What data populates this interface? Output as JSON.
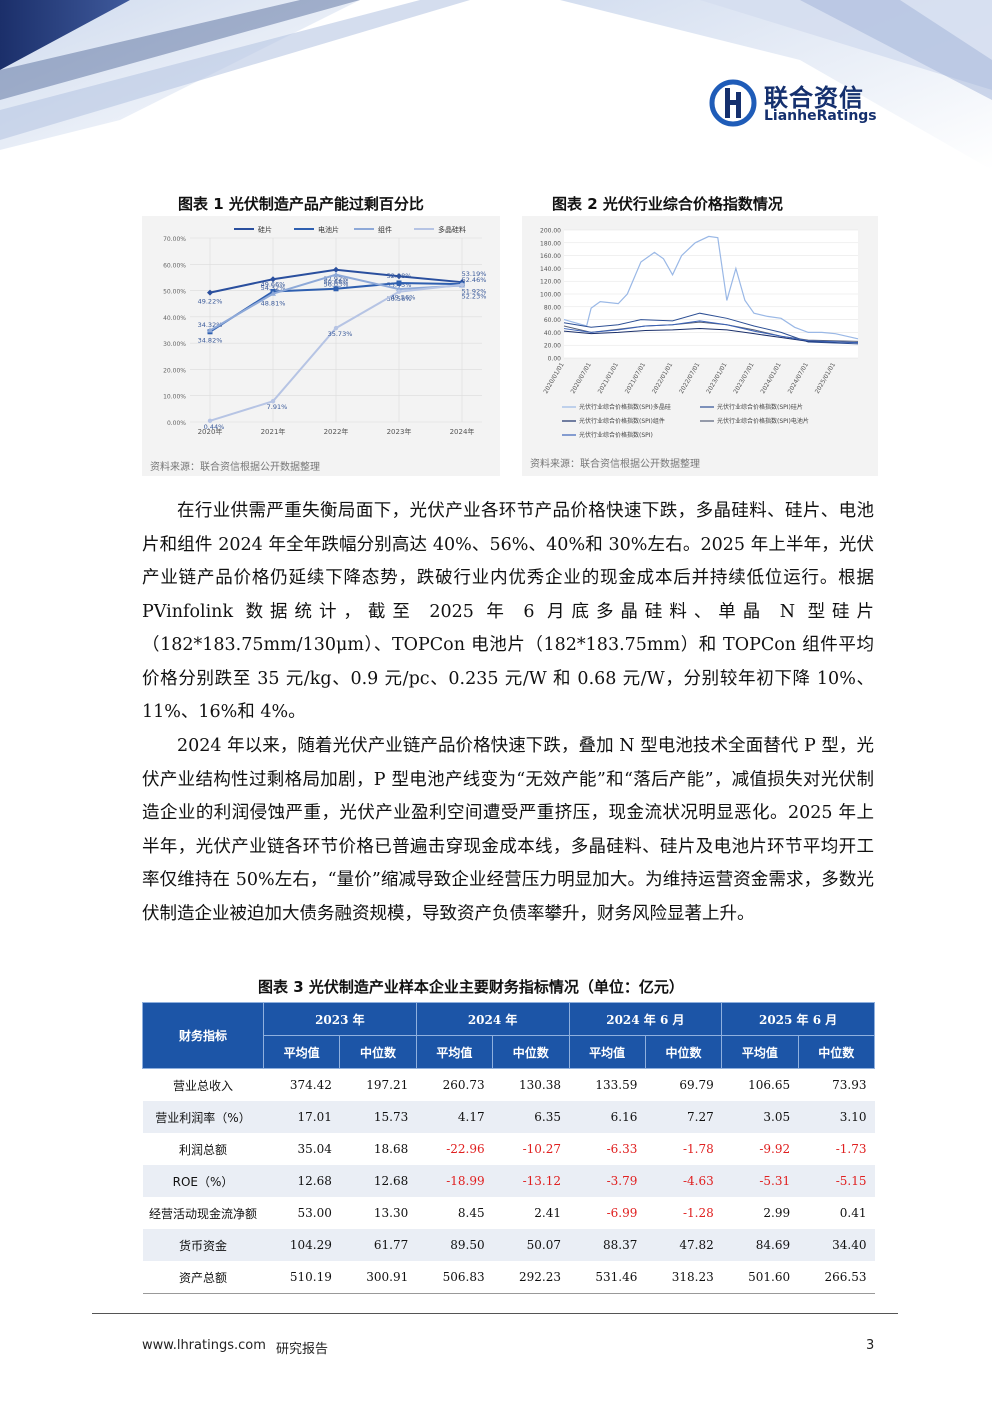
{
  "header": {
    "logo_cn": "联合资信",
    "logo_en": "LianheRatings"
  },
  "figure1": {
    "caption": "图表 1 光伏制造产品产能过剩百分比",
    "source": "资料来源：联合资信根据公开数据整理",
    "chart_data": {
      "type": "line",
      "categories": [
        "2020年",
        "2021年",
        "2022年",
        "2023年",
        "2024年"
      ],
      "ylim": [
        0,
        70
      ],
      "yticks": [
        "0.00%",
        "10.00%",
        "20.00%",
        "30.00%",
        "40.00%",
        "50.00%",
        "60.00%",
        "70.00%"
      ],
      "legend": [
        "硅片",
        "电池片",
        "组件",
        "多晶硅料"
      ],
      "series": [
        {
          "name": "硅片",
          "values": [
            49.22,
            54.32,
            57.92,
            55.45,
            53.19
          ],
          "labels": [
            "49.22%",
            "54.32%",
            "57.92%",
            "55.45%",
            "53.19%"
          ]
        },
        {
          "name": "电池片",
          "values": [
            34.32,
            49.66,
            50.68,
            52.88,
            52.46
          ],
          "labels": [
            "34.32%",
            "49.66%",
            "50.68%",
            "52.88%",
            "52.46%"
          ]
        },
        {
          "name": "组件",
          "values": [
            34.82,
            48.81,
            56.03,
            50.56,
            51.92
          ],
          "labels": [
            "34.82%",
            "48.81%",
            "56.03%",
            "50.56%",
            "51.92%"
          ]
        },
        {
          "name": "多晶硅料",
          "values": [
            0.44,
            7.91,
            35.73,
            49.56,
            52.23
          ],
          "labels": [
            "0.44%",
            "7.91%",
            "35.73%",
            "49.56%",
            "52.23%"
          ]
        }
      ]
    }
  },
  "figure2": {
    "caption": "图表 2 光伏行业综合价格指数情况",
    "source": "资料来源：联合资信根据公开数据整理",
    "chart_data": {
      "type": "line",
      "ylim": [
        0,
        200
      ],
      "yticks": [
        "0.00",
        "20.00",
        "40.00",
        "60.00",
        "80.00",
        "100.00",
        "120.00",
        "140.00",
        "160.00",
        "180.00",
        "200.00"
      ],
      "xticks": [
        "2020/01/01",
        "2020/07/01",
        "2021/01/01",
        "2021/07/01",
        "2022/01/01",
        "2022/07/01",
        "2023/01/01",
        "2023/07/01",
        "2024/01/01",
        "2024/07/01",
        "2025/01/01"
      ],
      "legend": [
        "光伏行业综合价格指数(SPI)多晶硅",
        "光伏行业综合价格指数(SPI)硅片",
        "光伏行业综合价格指数(SPI)组件",
        "光伏行业综合价格指数(SPI)电池片",
        "光伏行业综合价格指数(SPI)"
      ],
      "series": [
        {
          "name": "光伏行业综合价格指数(SPI)多晶硅",
          "x": [
            "2020/01",
            "2020/06",
            "2020/07",
            "2020/09",
            "2021/01",
            "2021/03",
            "2021/06",
            "2021/09",
            "2021/11",
            "2022/01",
            "2022/03",
            "2022/06",
            "2022/09",
            "2022/11",
            "2023/01",
            "2023/03",
            "2023/05",
            "2023/07",
            "2023/10",
            "2024/01",
            "2024/04",
            "2024/07",
            "2024/10",
            "2025/01",
            "2025/06"
          ],
          "values": [
            60,
            50,
            78,
            88,
            85,
            100,
            150,
            165,
            155,
            130,
            160,
            180,
            190,
            188,
            90,
            140,
            90,
            70,
            65,
            62,
            48,
            40,
            40,
            38,
            30
          ]
        },
        {
          "name": "光伏行业综合价格指数(SPI)硅片",
          "x": [
            "2020/01",
            "2020/07",
            "2021/01",
            "2021/06",
            "2022/01",
            "2022/07",
            "2023/01",
            "2023/07",
            "2024/01",
            "2024/07",
            "2025/06"
          ],
          "values": [
            55,
            48,
            52,
            60,
            58,
            70,
            62,
            50,
            40,
            25,
            22
          ]
        },
        {
          "name": "光伏行业综合价格指数(SPI)组件",
          "x": [
            "2020/01",
            "2020/07",
            "2021/01",
            "2021/07",
            "2022/01",
            "2022/07",
            "2023/01",
            "2023/07",
            "2024/01",
            "2024/07",
            "2025/06"
          ],
          "values": [
            42,
            38,
            40,
            43,
            44,
            46,
            44,
            38,
            32,
            26,
            24
          ]
        },
        {
          "name": "光伏行业综合价格指数(SPI)电池片",
          "x": [
            "2020/01",
            "2020/07",
            "2021/01",
            "2021/07",
            "2022/01",
            "2022/07",
            "2023/01",
            "2023/07",
            "2024/01",
            "2024/07",
            "2025/06"
          ],
          "values": [
            50,
            40,
            45,
            50,
            52,
            56,
            52,
            44,
            34,
            28,
            26
          ]
        },
        {
          "name": "光伏行业综合价格指数(SPI)",
          "x": [
            "2020/01",
            "2020/07",
            "2021/01",
            "2021/07",
            "2022/01",
            "2022/07",
            "2023/01",
            "2023/07",
            "2024/01",
            "2024/07",
            "2025/06"
          ],
          "values": [
            46,
            40,
            44,
            50,
            52,
            58,
            52,
            42,
            34,
            27,
            24
          ]
        }
      ]
    }
  },
  "body": {
    "p1": "在行业供需严重失衡局面下，光伏产业各环节产品价格快速下跌，多晶硅料、硅片、电池片和组件 2024 年全年跌幅分别高达 40%、56%、40%和 30%左右。2025 年上半年，光伏产业链产品价格仍延续下降态势，跌破行业内优秀企业的现金成本后并持续低位运行。根据 PVinfolink 数据统计，截至 2025 年 6 月底多晶硅料、单晶 N 型硅片（182*183.75mm/130μm）、TOPCon 电池片（182*183.75mm）和 TOPCon 组件平均价格分别跌至 35 元/kg、0.9 元/pc、0.235 元/W 和 0.68 元/W，分别较年初下降 10%、11%、16%和 4%。",
    "p2": "2024 年以来，随着光伏产业链产品价格快速下跌，叠加 N 型电池技术全面替代 P 型，光伏产业结构性过剩格局加剧，P 型电池产线变为“无效产能”和“落后产能”，减值损失对光伏制造企业的利润侵蚀严重，光伏产业盈利空间遭受严重挤压，现金流状况明显恶化。2025 年上半年，光伏产业链各环节价格已普遍击穿现金成本线，多晶硅料、硅片及电池片环节平均开工率仅维持在 50%左右，“量价”缩减导致企业经营压力明显加大。为维持运营资金需求，多数光伏制造企业被迫加大债务融资规模，导致资产负债率攀升，财务风险显著上升。"
  },
  "table3": {
    "caption": "图表 3 光伏制造产业样本企业主要财务指标情况（单位：亿元）",
    "corner": "财务指标",
    "periods": [
      "2023 年",
      "2024 年",
      "2024 年 6 月",
      "2025 年 6 月"
    ],
    "sub": [
      "平均值",
      "中位数"
    ],
    "rows": [
      {
        "label": "营业总收入",
        "values": [
          "374.42",
          "197.21",
          "260.73",
          "130.38",
          "133.59",
          "69.79",
          "106.65",
          "73.93"
        ]
      },
      {
        "label": "营业利润率（%）",
        "values": [
          "17.01",
          "15.73",
          "4.17",
          "6.35",
          "6.16",
          "7.27",
          "3.05",
          "3.10"
        ]
      },
      {
        "label": "利润总额",
        "values": [
          "35.04",
          "18.68",
          "-22.96",
          "-10.27",
          "-6.33",
          "-1.78",
          "-9.92",
          "-1.73"
        ]
      },
      {
        "label": "ROE（%）",
        "values": [
          "12.68",
          "12.68",
          "-18.99",
          "-13.12",
          "-3.79",
          "-4.63",
          "-5.31",
          "-5.15"
        ]
      },
      {
        "label": "经营活动现金流净额",
        "values": [
          "53.00",
          "13.30",
          "8.45",
          "2.41",
          "-6.99",
          "-1.28",
          "2.99",
          "0.41"
        ]
      },
      {
        "label": "货币资金",
        "values": [
          "104.29",
          "61.77",
          "89.50",
          "50.07",
          "88.37",
          "47.82",
          "84.69",
          "34.40"
        ]
      },
      {
        "label": "资产总额",
        "values": [
          "510.19",
          "300.91",
          "506.83",
          "292.23",
          "531.46",
          "318.23",
          "501.60",
          "266.53"
        ]
      }
    ],
    "negative_color": "#e02020"
  },
  "footer": {
    "url": "www.lhratings.com",
    "label": "研究报告",
    "page": "3"
  },
  "colors": {
    "brand": "#15306e",
    "table_header": "#1c55a7"
  }
}
